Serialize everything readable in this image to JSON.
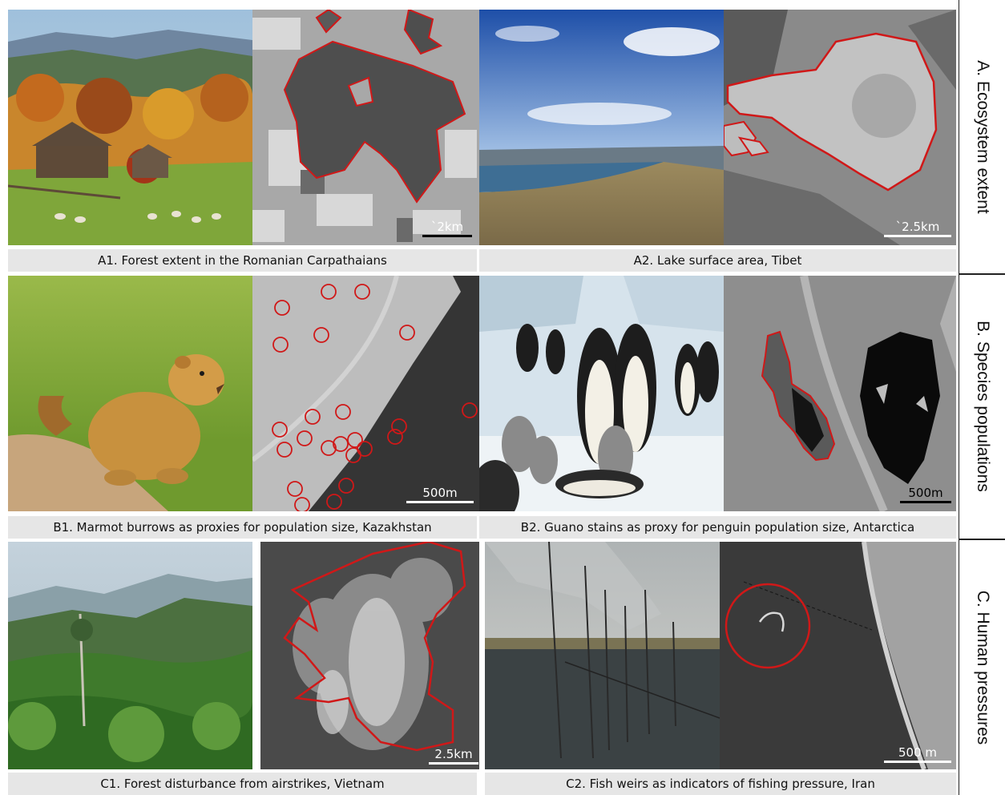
{
  "sections": [
    {
      "label": "A. Ecosystem extent"
    },
    {
      "label": "B. Species populations"
    },
    {
      "label": "C. Human pressures"
    }
  ],
  "panels": {
    "a1": {
      "caption": "A1. Forest extent in the Romanian Carpathaians",
      "scale": "`2km"
    },
    "a2": {
      "caption": "A2. Lake surface area, Tibet",
      "scale": "`2.5km"
    },
    "b1": {
      "caption": "B1. Marmot burrows as proxies for population size, Kazakhstan",
      "scale": "500m"
    },
    "b2": {
      "caption": "B2. Guano stains as proxy for penguin population size, Antarctica",
      "scale": "500m"
    },
    "c1": {
      "caption": "C1. Forest disturbance from airstrikes, Vietnam",
      "scale": "2.5km"
    },
    "c2": {
      "caption": "C2. Fish weirs as indicators of fishing pressure, Iran",
      "scale": "500 m"
    }
  },
  "colors": {
    "outline": "#d01818",
    "caption_bg": "#e6e6e6"
  }
}
